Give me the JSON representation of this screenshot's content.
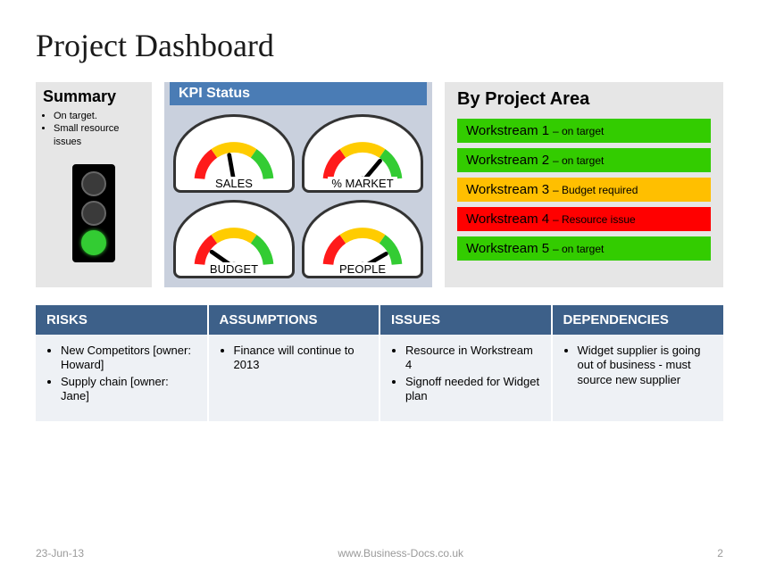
{
  "title": "Project Dashboard",
  "summary": {
    "heading": "Summary",
    "bullets": [
      "On target.",
      "Small resource issues"
    ],
    "traffic_light": {
      "red_on": false,
      "amber_on": false,
      "green_on": true,
      "on_color": "#33cc33",
      "off_color": "#3a3a3a",
      "housing_color": "#000000"
    }
  },
  "kpi": {
    "heading": "KPI Status",
    "header_bg": "#4a7cb5",
    "panel_bg": "#c9d0dd",
    "gauge_colors": {
      "red": "#ff1a1a",
      "amber": "#ffcc00",
      "green": "#33cc33",
      "needle": "#000000"
    },
    "gauges": [
      {
        "label": "SALES",
        "needle_angle": -10
      },
      {
        "label": "% MARKET",
        "needle_angle": 40
      },
      {
        "label": "BUDGET",
        "needle_angle": -55
      },
      {
        "label": "PEOPLE",
        "needle_angle": 60
      }
    ]
  },
  "project_area": {
    "heading": "By Project Area",
    "panel_bg": "#e6e6e6",
    "status_colors": {
      "green": "#33cc00",
      "amber": "#ffbf00",
      "red": "#ff0000"
    },
    "workstreams": [
      {
        "name": "Workstream 1",
        "status": "– on target",
        "color": "#33cc00"
      },
      {
        "name": "Workstream 2",
        "status": "– on target",
        "color": "#33cc00"
      },
      {
        "name": "Workstream 3",
        "status": "– Budget  required",
        "color": "#ffbf00"
      },
      {
        "name": "Workstream 4",
        "status": "– Resource issue",
        "color": "#ff0000"
      },
      {
        "name": "Workstream 5",
        "status": "– on target",
        "color": "#33cc00"
      }
    ]
  },
  "raid": {
    "header_bg": "#3d6089",
    "cell_bg": "#eef1f5",
    "columns": [
      {
        "title": "RISKS",
        "items": [
          "New Competitors [owner: Howard]",
          "Supply chain [owner: Jane]"
        ]
      },
      {
        "title": "ASSUMPTIONS",
        "items": [
          "Finance will continue to 2013"
        ]
      },
      {
        "title": "ISSUES",
        "items": [
          "Resource in Workstream 4",
          "Signoff needed for Widget plan"
        ]
      },
      {
        "title": "DEPENDENCIES",
        "items": [
          "Widget supplier is going out of business - must source new supplier"
        ]
      }
    ]
  },
  "footer": {
    "date": "23-Jun-13",
    "url": "www.Business-Docs.co.uk",
    "page": "2"
  }
}
